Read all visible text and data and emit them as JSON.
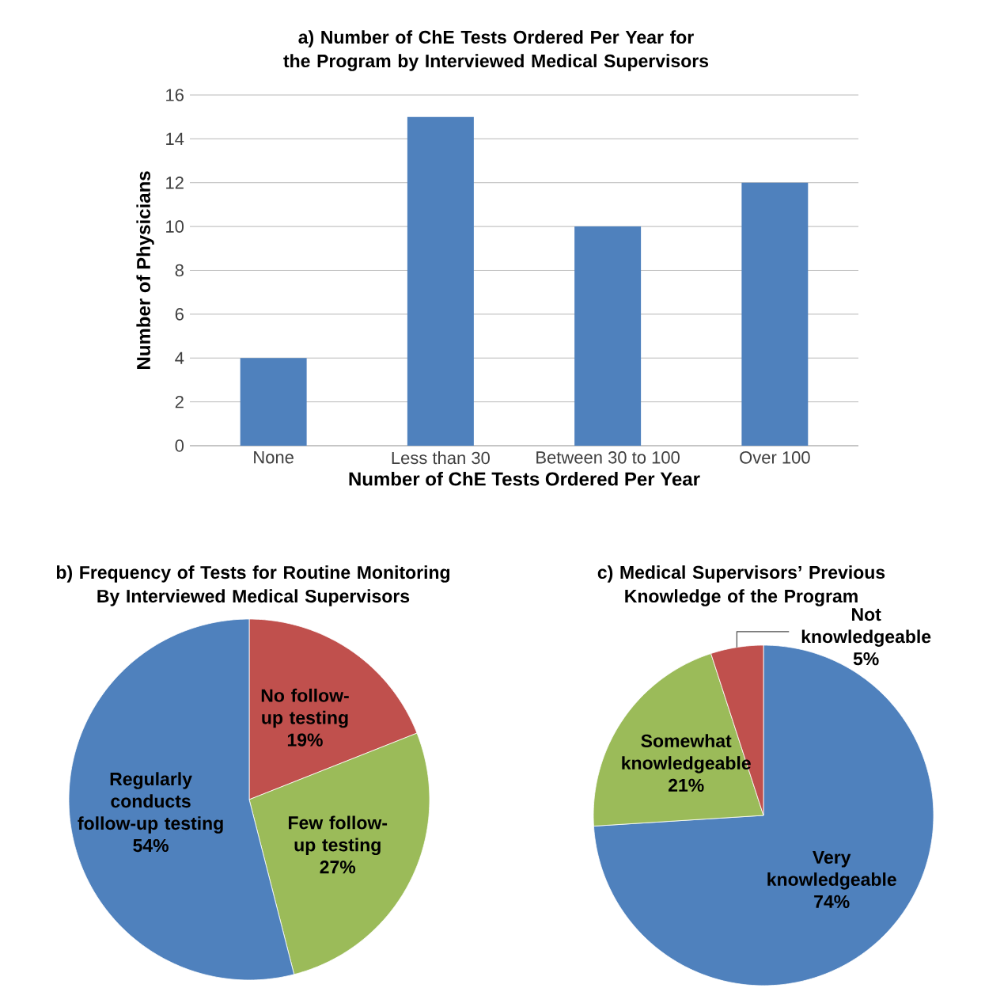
{
  "chart_data": [
    {
      "type": "bar",
      "title": "a) Number of ChE Tests Ordered Per Year for the Program by Interviewed Medical Supervisors",
      "xlabel": "Number of ChE  Tests Ordered Per Year",
      "ylabel": "Number of Physicians",
      "categories": [
        "None",
        "Less than 30",
        "Between 30 to 100",
        "Over 100"
      ],
      "values": [
        4,
        15,
        10,
        12
      ],
      "color": "#4f81bd",
      "ylim": [
        0,
        16
      ],
      "yticks": [
        0,
        2,
        4,
        6,
        8,
        10,
        12,
        14,
        16
      ],
      "grid": "y"
    },
    {
      "type": "pie",
      "title": "b) Frequency of Tests for Routine Monitoring By Interviewed Medical Supervisors",
      "categories": [
        "No follow-up testing",
        "Few follow-up testing",
        "Regularly conducts follow-up testing"
      ],
      "values": [
        19,
        27,
        54
      ],
      "value_labels": [
        "19%",
        "27%",
        "54%"
      ],
      "colors": [
        "#c0504d",
        "#9bbb59",
        "#4f81bd"
      ]
    },
    {
      "type": "pie",
      "title": "c) Medical Supervisors’ Previous Knowledge of the Program",
      "categories": [
        "Very knowledgeable",
        "Somewhat knowledgeable",
        "Not knowledgeable"
      ],
      "values": [
        74,
        21,
        5
      ],
      "value_labels": [
        "74%",
        "21%",
        "5%"
      ],
      "colors": [
        "#4f81bd",
        "#9bbb59",
        "#c0504d"
      ]
    }
  ]
}
